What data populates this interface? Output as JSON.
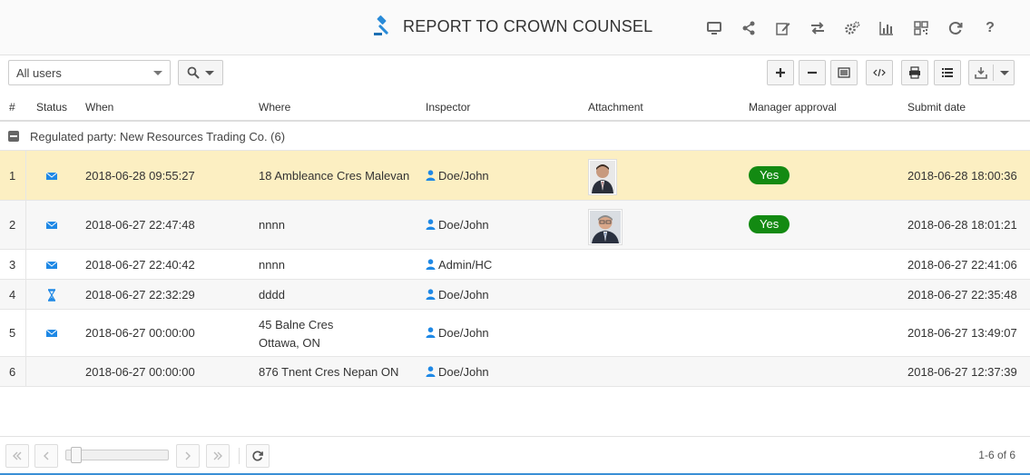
{
  "header": {
    "title": "REPORT TO CROWN COUNSEL",
    "icons": [
      "monitor-icon",
      "share-icon",
      "edit-icon",
      "transfer-icon",
      "settings-icon",
      "chart-icon",
      "qr-code-icon",
      "refresh-icon",
      "help-icon"
    ],
    "help_label": "?"
  },
  "toolbar": {
    "user_select_value": "All users",
    "buttons": [
      "add-icon",
      "remove-icon",
      "columns-icon",
      "code-icon",
      "print-icon",
      "list-icon",
      "download-icon"
    ]
  },
  "table": {
    "columns": {
      "index": "#",
      "status": "Status",
      "when": "When",
      "where": "Where",
      "inspector": "Inspector",
      "attachment": "Attachment",
      "manager_approval": "Manager approval",
      "submit_date": "Submit date"
    },
    "group_label": "Regulated party: New Resources Trading Co. (6)",
    "rows": [
      {
        "index": "1",
        "status": "envelope-icon",
        "when": "2018-06-28 09:55:27",
        "where": "18 Ambleance Cres Malevan",
        "where2": "",
        "inspector": "Doe/John",
        "attachment": true,
        "approval": "Yes",
        "submit": "2018-06-28 18:00:36"
      },
      {
        "index": "2",
        "status": "envelope-icon",
        "when": "2018-06-27 22:47:48",
        "where": "nnnn",
        "where2": "",
        "inspector": "Doe/John",
        "attachment": true,
        "approval": "Yes",
        "submit": "2018-06-28 18:01:21"
      },
      {
        "index": "3",
        "status": "envelope-icon",
        "when": "2018-06-27 22:40:42",
        "where": "nnnn",
        "where2": "",
        "inspector": "Admin/HC",
        "attachment": false,
        "approval": "",
        "submit": "2018-06-27 22:41:06"
      },
      {
        "index": "4",
        "status": "hourglass-icon",
        "when": "2018-06-27 22:32:29",
        "where": "dddd",
        "where2": "",
        "inspector": "Doe/John",
        "attachment": false,
        "approval": "",
        "submit": "2018-06-27 22:35:48"
      },
      {
        "index": "5",
        "status": "envelope-icon",
        "when": "2018-06-27 00:00:00",
        "where": "45 Balne Cres",
        "where2": "Ottawa, ON",
        "inspector": "Doe/John",
        "attachment": false,
        "approval": "",
        "submit": "2018-06-27 13:49:07"
      },
      {
        "index": "6",
        "status": "",
        "when": "2018-06-27 00:00:00",
        "where": "876 Tnent Cres Nepan ON",
        "where2": "",
        "inspector": "Doe/John",
        "attachment": false,
        "approval": "",
        "submit": "2018-06-27 12:37:39"
      }
    ]
  },
  "pager": {
    "count_text": "1-6 of 6"
  },
  "colors": {
    "selected_row": "#fcefc2",
    "approval_badge": "#138a12",
    "status_icon": "#1e88e5",
    "title_icon": "#2a8bd8"
  }
}
